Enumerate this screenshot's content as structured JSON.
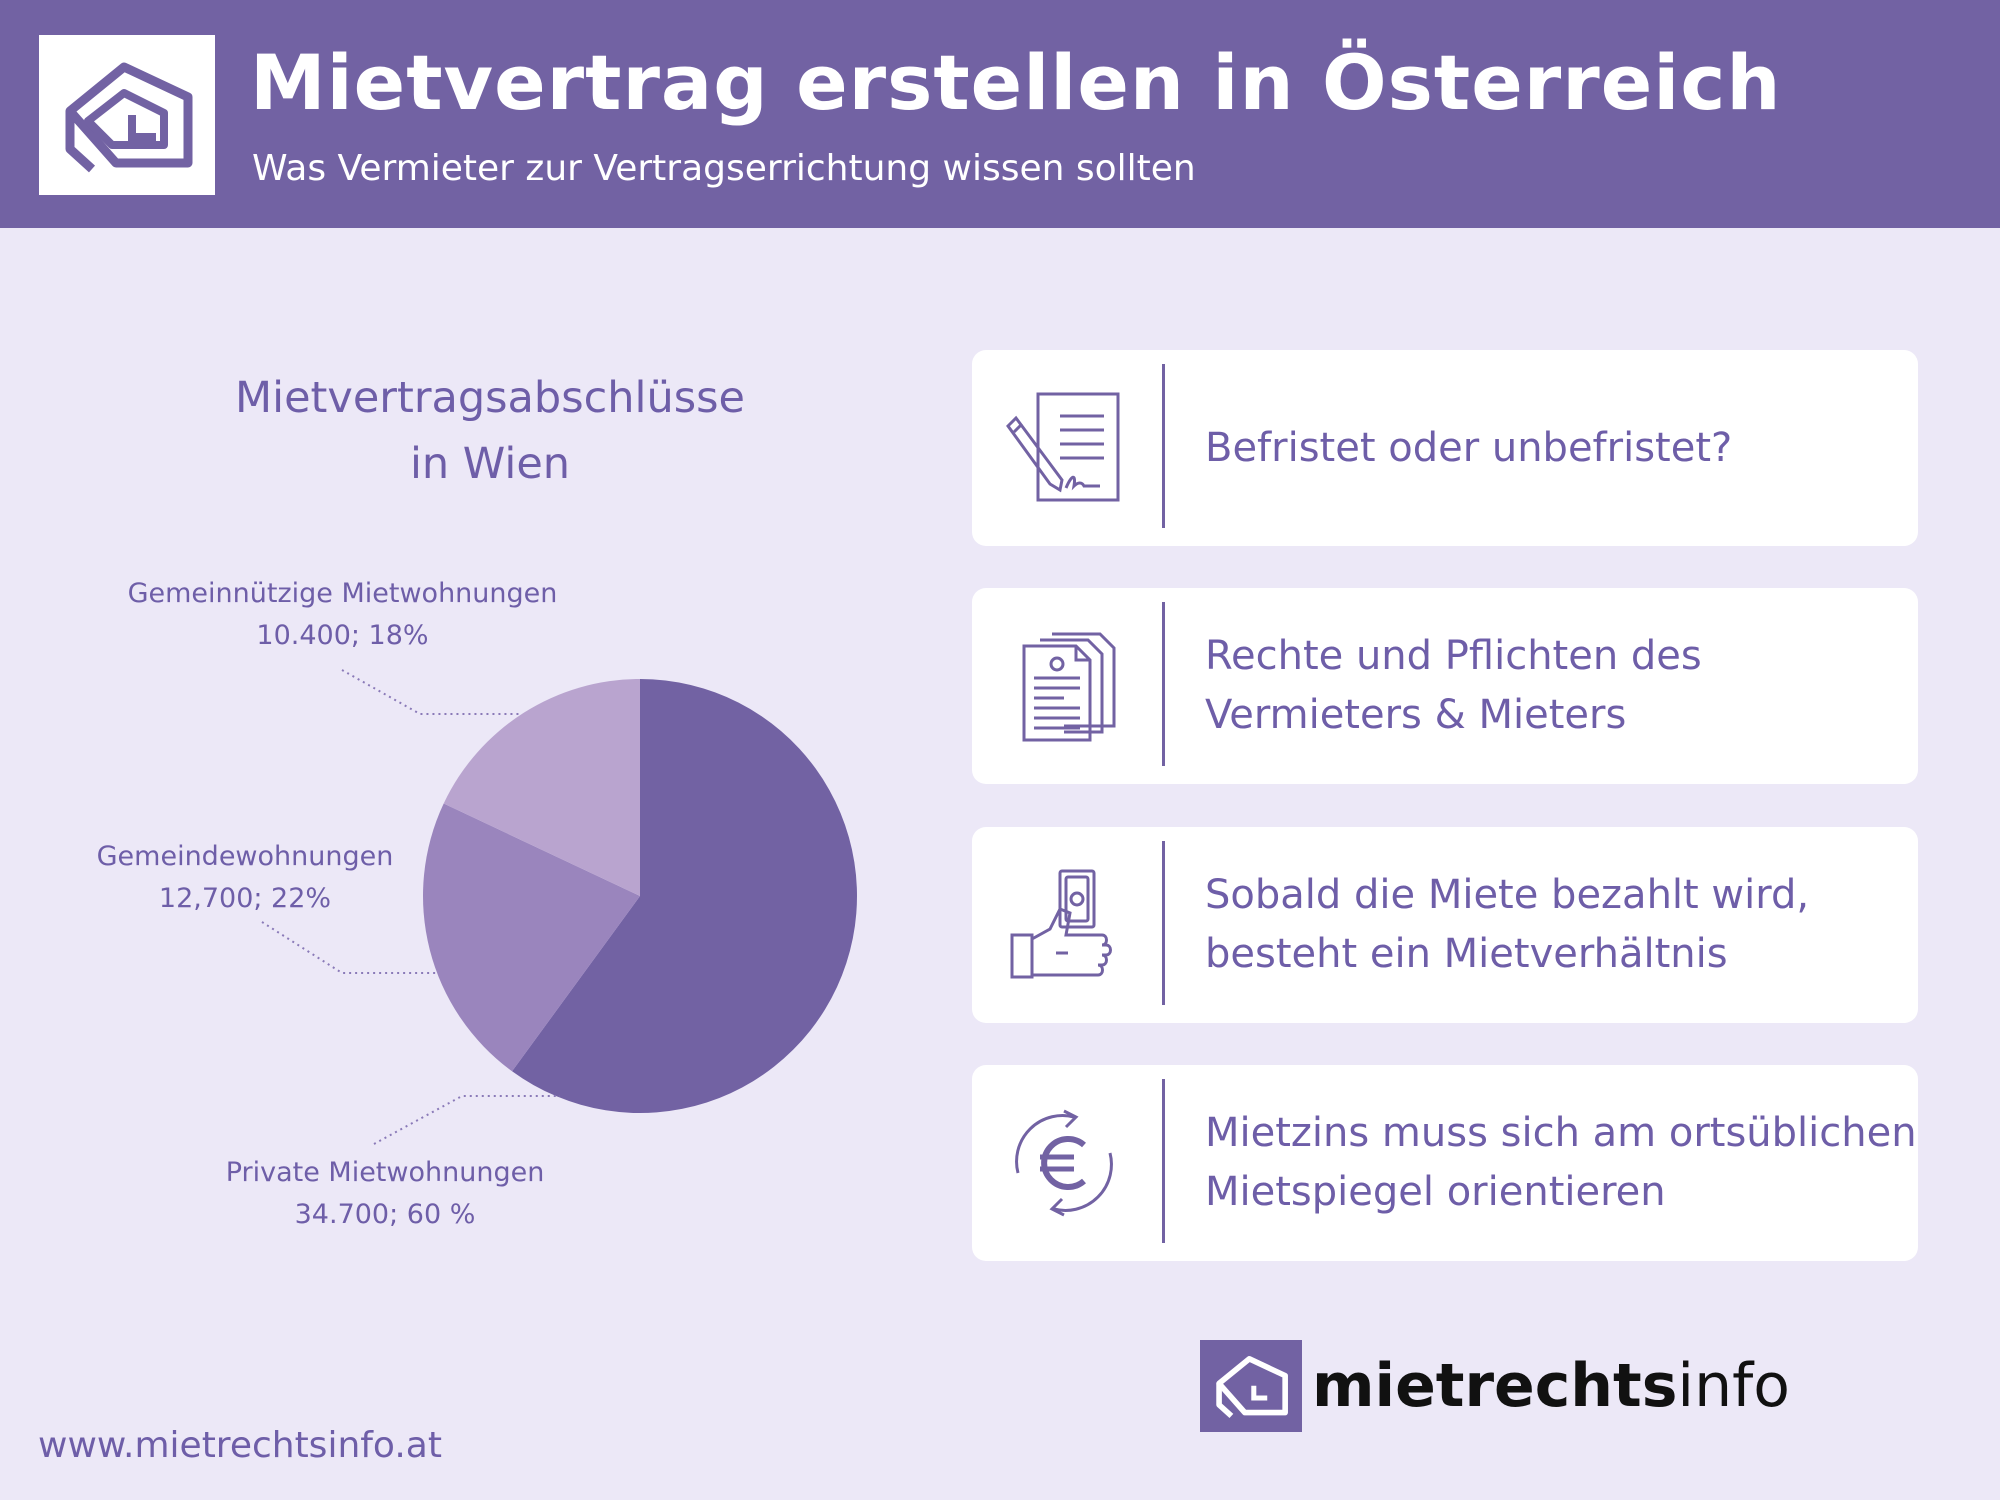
{
  "header": {
    "title": "Mietvertrag erstellen in Österreich",
    "subtitle": "Was Vermieter zur Vertragserrichtung wissen sollten",
    "logo_icon": "house-logo-icon"
  },
  "chart_data": {
    "type": "pie",
    "title_lines": [
      "Mietvertragsabschlüsse",
      "in Wien"
    ],
    "slices": [
      {
        "label": "Private Mietwohnungen",
        "value": 34700,
        "percent": 60,
        "value_text": "34.700; 60 %",
        "color": "#7262a3"
      },
      {
        "label": "Gemeindewohnungen",
        "value": 12700,
        "percent": 22,
        "value_text": "12,700; 22%",
        "color": "#9a85bd"
      },
      {
        "label": "Gemeinnützige Mietwohnungen",
        "value": 10400,
        "percent": 18,
        "value_text": "10.400; 18%",
        "color": "#b9a4cf"
      }
    ]
  },
  "cards": [
    {
      "icon": "contract-signing-icon",
      "lines": [
        "Befristet oder unbefristet?"
      ]
    },
    {
      "icon": "documents-icon",
      "lines": [
        "Rechte und Pflichten des",
        "Vermieters & Mieters"
      ]
    },
    {
      "icon": "hand-money-icon",
      "lines": [
        "Sobald die Miete bezahlt wird,",
        "besteht ein Mietverhältnis"
      ]
    },
    {
      "icon": "euro-exchange-icon",
      "lines": [
        "Mietzins muss sich am ortsüblichen",
        "Mietspiegel orientieren"
      ]
    }
  ],
  "footer": {
    "url": "www.mietrechtsinfo.at",
    "brand_bold": "mietrechts",
    "brand_light": "info"
  },
  "colors": {
    "primary": "#7262a3",
    "background": "#ece8f7",
    "text": "#6e5ea8"
  }
}
